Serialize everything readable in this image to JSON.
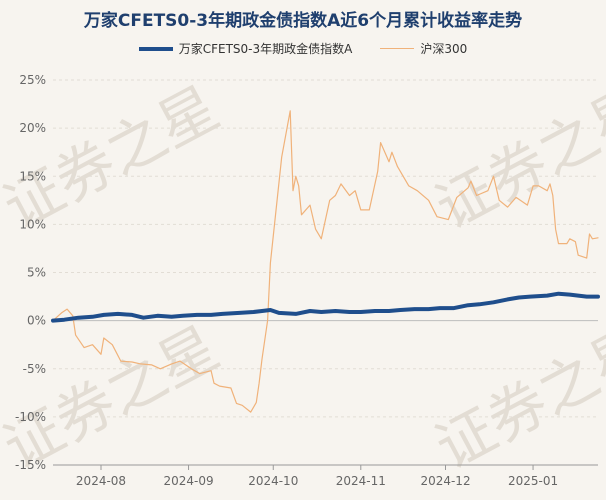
{
  "chart_data": {
    "type": "line",
    "title": "万家CFETS0-3年期政金债指数A近6个月累计收益率走势",
    "watermark": "证券之星",
    "legend_position": "top",
    "grid": true,
    "xlabel": "",
    "ylabel": "",
    "ylim": [
      -15,
      25
    ],
    "y_ticks": [
      "25%",
      "20%",
      "15%",
      "10%",
      "5%",
      "0%",
      "-5%",
      "-10%",
      "-15%"
    ],
    "x_ticks": [
      "2024-08",
      "2024-09",
      "2024-10",
      "2024-11",
      "2024-12",
      "2025-01"
    ],
    "x_tick_dates": [
      "2024-08-01",
      "2024-09-01",
      "2024-10-01",
      "2024-11-01",
      "2024-12-01",
      "2025-01-01"
    ],
    "series": [
      {
        "name": "万家CFETS0-3年期政金债指数A",
        "color": "#1f4e8c",
        "points": [
          [
            "2024-07-15",
            0.0
          ],
          [
            "2024-07-19",
            0.1
          ],
          [
            "2024-07-24",
            0.3
          ],
          [
            "2024-07-29",
            0.4
          ],
          [
            "2024-08-02",
            0.6
          ],
          [
            "2024-08-07",
            0.7
          ],
          [
            "2024-08-12",
            0.6
          ],
          [
            "2024-08-16",
            0.3
          ],
          [
            "2024-08-21",
            0.5
          ],
          [
            "2024-08-26",
            0.4
          ],
          [
            "2024-08-30",
            0.5
          ],
          [
            "2024-09-04",
            0.6
          ],
          [
            "2024-09-09",
            0.6
          ],
          [
            "2024-09-13",
            0.7
          ],
          [
            "2024-09-19",
            0.8
          ],
          [
            "2024-09-24",
            0.9
          ],
          [
            "2024-09-27",
            1.0
          ],
          [
            "2024-09-30",
            1.1
          ],
          [
            "2024-10-03",
            0.8
          ],
          [
            "2024-10-09",
            0.7
          ],
          [
            "2024-10-14",
            1.0
          ],
          [
            "2024-10-18",
            0.9
          ],
          [
            "2024-10-23",
            1.0
          ],
          [
            "2024-10-28",
            0.9
          ],
          [
            "2024-11-01",
            0.9
          ],
          [
            "2024-11-06",
            1.0
          ],
          [
            "2024-11-11",
            1.0
          ],
          [
            "2024-11-15",
            1.1
          ],
          [
            "2024-11-20",
            1.2
          ],
          [
            "2024-11-25",
            1.2
          ],
          [
            "2024-11-29",
            1.3
          ],
          [
            "2024-12-04",
            1.3
          ],
          [
            "2024-12-09",
            1.6
          ],
          [
            "2024-12-13",
            1.7
          ],
          [
            "2024-12-18",
            1.9
          ],
          [
            "2024-12-23",
            2.2
          ],
          [
            "2024-12-27",
            2.4
          ],
          [
            "2024-12-31",
            2.5
          ],
          [
            "2025-01-06",
            2.6
          ],
          [
            "2025-01-10",
            2.8
          ],
          [
            "2025-01-14",
            2.7
          ],
          [
            "2025-01-17",
            2.6
          ],
          [
            "2025-01-20",
            2.5
          ],
          [
            "2025-01-24",
            2.5
          ]
        ]
      },
      {
        "name": "沪深300",
        "color": "#f0b27a",
        "points": [
          [
            "2024-07-15",
            0.0
          ],
          [
            "2024-07-18",
            0.8
          ],
          [
            "2024-07-20",
            1.2
          ],
          [
            "2024-07-22",
            0.5
          ],
          [
            "2024-07-23",
            -1.5
          ],
          [
            "2024-07-26",
            -2.8
          ],
          [
            "2024-07-29",
            -2.5
          ],
          [
            "2024-08-01",
            -3.5
          ],
          [
            "2024-08-02",
            -1.8
          ],
          [
            "2024-08-05",
            -2.5
          ],
          [
            "2024-08-08",
            -4.2
          ],
          [
            "2024-08-12",
            -4.3
          ],
          [
            "2024-08-15",
            -4.5
          ],
          [
            "2024-08-19",
            -4.6
          ],
          [
            "2024-08-22",
            -5.0
          ],
          [
            "2024-08-26",
            -4.5
          ],
          [
            "2024-08-29",
            -4.2
          ],
          [
            "2024-09-02",
            -5.0
          ],
          [
            "2024-09-05",
            -5.5
          ],
          [
            "2024-09-09",
            -5.2
          ],
          [
            "2024-09-10",
            -6.5
          ],
          [
            "2024-09-12",
            -6.8
          ],
          [
            "2024-09-16",
            -7.0
          ],
          [
            "2024-09-18",
            -8.6
          ],
          [
            "2024-09-20",
            -8.8
          ],
          [
            "2024-09-23",
            -9.5
          ],
          [
            "2024-09-24",
            -9.0
          ],
          [
            "2024-09-25",
            -8.5
          ],
          [
            "2024-09-26",
            -6.5
          ],
          [
            "2024-09-27",
            -4.0
          ],
          [
            "2024-09-29",
            0.0
          ],
          [
            "2024-09-30",
            6.0
          ],
          [
            "2024-10-04",
            17.0
          ],
          [
            "2024-10-07",
            21.8
          ],
          [
            "2024-10-08",
            13.5
          ],
          [
            "2024-10-09",
            15.0
          ],
          [
            "2024-10-10",
            14.0
          ],
          [
            "2024-10-11",
            11.0
          ],
          [
            "2024-10-14",
            12.0
          ],
          [
            "2024-10-16",
            9.5
          ],
          [
            "2024-10-18",
            8.5
          ],
          [
            "2024-10-21",
            12.5
          ],
          [
            "2024-10-23",
            13.0
          ],
          [
            "2024-10-25",
            14.2
          ],
          [
            "2024-10-28",
            13.0
          ],
          [
            "2024-10-30",
            13.5
          ],
          [
            "2024-11-01",
            11.5
          ],
          [
            "2024-11-04",
            11.5
          ],
          [
            "2024-11-07",
            15.5
          ],
          [
            "2024-11-08",
            18.5
          ],
          [
            "2024-11-11",
            16.5
          ],
          [
            "2024-11-12",
            17.5
          ],
          [
            "2024-11-14",
            16.0
          ],
          [
            "2024-11-18",
            14.0
          ],
          [
            "2024-11-21",
            13.5
          ],
          [
            "2024-11-25",
            12.5
          ],
          [
            "2024-11-28",
            10.8
          ],
          [
            "2024-12-02",
            10.5
          ],
          [
            "2024-12-05",
            12.8
          ],
          [
            "2024-12-09",
            13.8
          ],
          [
            "2024-12-10",
            14.5
          ],
          [
            "2024-12-12",
            13.0
          ],
          [
            "2024-12-16",
            13.5
          ],
          [
            "2024-12-18",
            15.0
          ],
          [
            "2024-12-20",
            12.5
          ],
          [
            "2024-12-23",
            11.8
          ],
          [
            "2024-12-26",
            12.8
          ],
          [
            "2024-12-30",
            12.0
          ],
          [
            "2025-01-01",
            14.0
          ],
          [
            "2025-01-03",
            14.0
          ],
          [
            "2025-01-06",
            13.5
          ],
          [
            "2025-01-07",
            14.2
          ],
          [
            "2025-01-08",
            13.0
          ],
          [
            "2025-01-09",
            9.5
          ],
          [
            "2025-01-10",
            8.0
          ],
          [
            "2025-01-13",
            8.0
          ],
          [
            "2025-01-14",
            8.5
          ],
          [
            "2025-01-16",
            8.2
          ],
          [
            "2025-01-17",
            6.8
          ],
          [
            "2025-01-20",
            6.5
          ],
          [
            "2025-01-21",
            9.0
          ],
          [
            "2025-01-22",
            8.5
          ],
          [
            "2025-01-24",
            8.6
          ]
        ]
      }
    ]
  }
}
